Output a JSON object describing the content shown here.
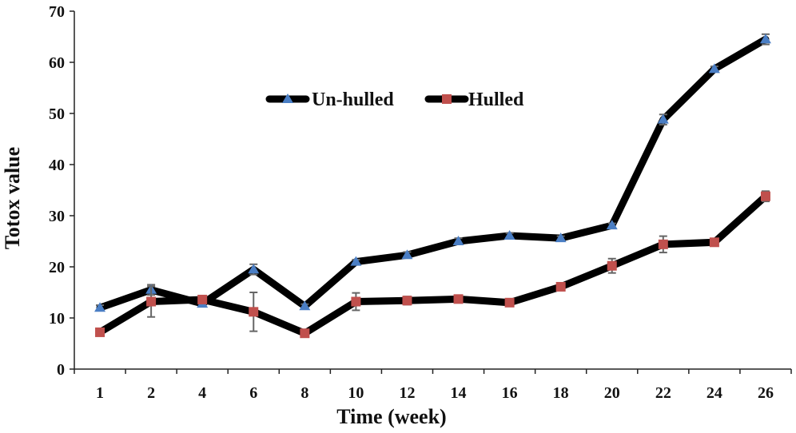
{
  "chart_data": {
    "type": "line",
    "title": "",
    "xlabel": "Time (week)",
    "ylabel": "Totox value",
    "categories": [
      "1",
      "2",
      "4",
      "6",
      "8",
      "10",
      "12",
      "14",
      "16",
      "18",
      "20",
      "22",
      "24",
      "26"
    ],
    "ylim": [
      0,
      70
    ],
    "yticks": [
      0,
      10,
      20,
      30,
      40,
      50,
      60,
      70
    ],
    "grid": false,
    "legend_position": "top-center",
    "series": [
      {
        "name": "Un-hulled",
        "marker": "triangle",
        "line_color": "#000000",
        "marker_color": "#4a7ec4",
        "values": [
          12.0,
          15.5,
          12.8,
          19.5,
          12.3,
          21.0,
          22.3,
          25.0,
          26.1,
          25.6,
          28.1,
          48.8,
          58.7,
          64.5
        ],
        "errors": [
          0.5,
          1.0,
          0.5,
          1.0,
          0.4,
          0.4,
          0.6,
          0.6,
          0.5,
          0.4,
          0.4,
          1.0,
          0.5,
          1.0
        ]
      },
      {
        "name": "Hulled",
        "marker": "square",
        "line_color": "#000000",
        "marker_color": "#c0504d",
        "values": [
          7.2,
          13.2,
          13.6,
          11.2,
          7.0,
          13.2,
          13.4,
          13.7,
          13.0,
          16.1,
          20.2,
          24.4,
          24.8,
          33.8
        ],
        "errors": [
          0.3,
          3.0,
          0.5,
          3.8,
          0.3,
          1.7,
          0.8,
          0.3,
          0.3,
          0.4,
          1.4,
          1.6,
          0.4,
          1.0
        ]
      }
    ]
  }
}
